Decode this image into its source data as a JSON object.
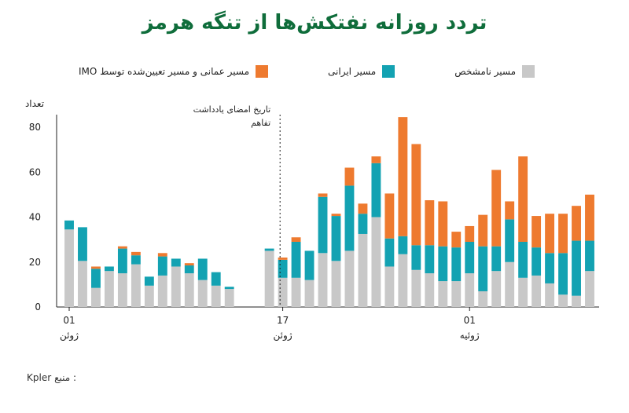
{
  "chart_data": {
    "type": "bar",
    "stacked": true,
    "title": "تردد روزانه نفتکش‌ها از تنگه هرمز",
    "ylabel": "تعداد",
    "ylim": [
      0,
      85
    ],
    "yticks": [
      0,
      20,
      40,
      60,
      80
    ],
    "grid": false,
    "legend_position": "top",
    "x_tick_labels": [
      {
        "day": "01",
        "month": "ژوئن",
        "index": 0
      },
      {
        "day": "17",
        "month": "ژوئن",
        "index": 16
      },
      {
        "day": "01",
        "month": "ژوئیه",
        "index": 30
      }
    ],
    "annotation": {
      "lines": [
        "تاریخ امضای یادداشت",
        "تفاهم"
      ],
      "at_index": 15.8
    },
    "series": [
      {
        "name": "مسیر نامشخص",
        "color": "#c8c8c8",
        "values": [
          34.5,
          20.5,
          8.5,
          16,
          15,
          19,
          9.5,
          14,
          18,
          15,
          12,
          9.5,
          8,
          null,
          null,
          25,
          13,
          13,
          12,
          24,
          20.5,
          25,
          32.5,
          40,
          18,
          23.5,
          16.5,
          15,
          11.5,
          11.5,
          15,
          7,
          16,
          20,
          13,
          14,
          10.5,
          5.5,
          5,
          16
        ]
      },
      {
        "name": "مسیر ایرانی",
        "color": "#13a2b2",
        "values": [
          4,
          15,
          8.5,
          2,
          11,
          4,
          4,
          8.5,
          3.5,
          3.5,
          9.5,
          6,
          1,
          null,
          null,
          1,
          8,
          16,
          13,
          25,
          20,
          29,
          9,
          24,
          12.5,
          8,
          11,
          12.5,
          15.5,
          15,
          14,
          20,
          11,
          19,
          16,
          12.5,
          13.5,
          18.5,
          24.5,
          13.5
        ]
      },
      {
        "name": "مسیر عمانی و مسیر تعیین‌شده توسط IMO",
        "color": "#ee7a2f",
        "values": [
          0,
          0,
          1,
          0,
          1,
          1.5,
          0,
          1.5,
          0,
          1,
          0,
          0,
          0,
          null,
          null,
          0,
          1,
          2,
          0,
          1.5,
          1,
          8,
          4.5,
          3,
          20,
          53,
          45,
          20,
          20,
          7,
          7,
          14,
          34,
          8,
          38,
          14,
          17.5,
          17.5,
          15.5,
          20.5
        ]
      }
    ]
  },
  "source": {
    "label": "منبع :",
    "value": "Kpler"
  }
}
